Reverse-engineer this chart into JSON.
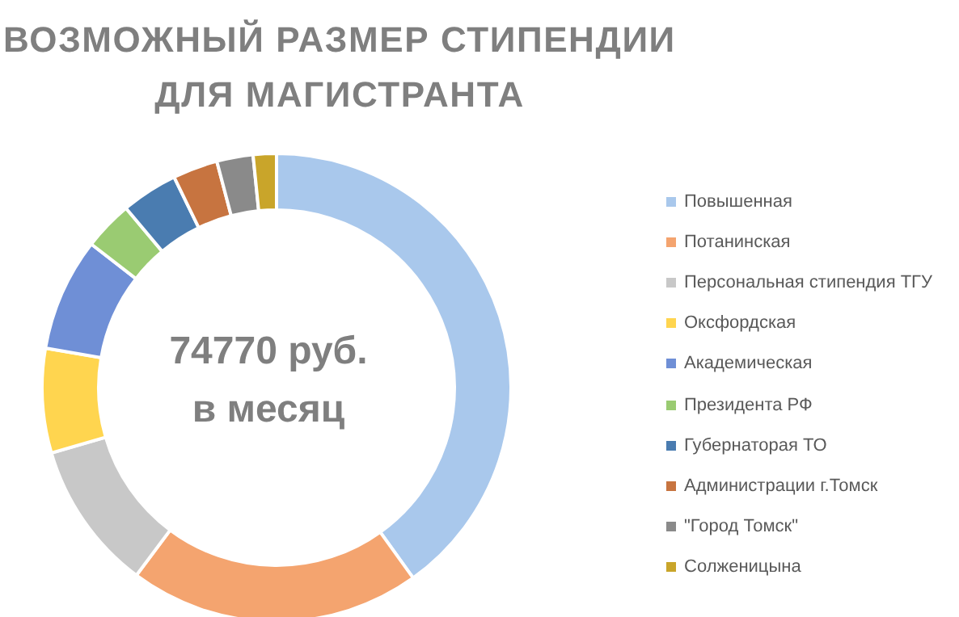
{
  "chart_data": {
    "type": "donut",
    "title": "ВОЗМОЖНЫЙ РАЗМЕР СТИПЕНДИИ ДЛЯ МАГИСТРАНТА",
    "categories": [
      "Повышенная",
      "Потанинская",
      "Персональная стипендия ТГУ",
      "Оксфордская",
      "Академическая",
      "Президента РФ",
      "Губернаторая ТО",
      "Администрации г.Томск",
      "\"Город Томск\"",
      "Солженицына"
    ],
    "values": [
      40.1,
      20.1,
      10.3,
      7.2,
      7.8,
      3.4,
      3.9,
      3.1,
      2.5,
      1.6
    ],
    "colors": [
      "#a9c8ec",
      "#f4a46f",
      "#c8c8c8",
      "#ffd54f",
      "#6f8fd6",
      "#9acb72",
      "#4a7cb0",
      "#c77440",
      "#8a8a8a",
      "#c9a52a"
    ],
    "annotations": [
      "74770 руб. в месяц"
    ],
    "legend": "right"
  }
}
